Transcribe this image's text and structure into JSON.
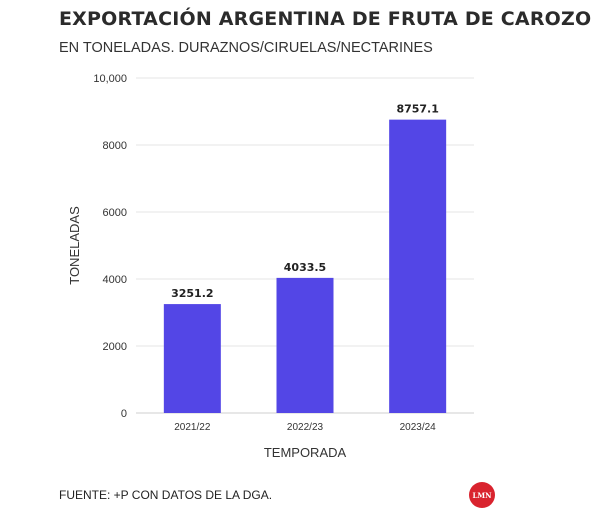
{
  "header": {
    "title": "EXPORTACIÓN ARGENTINA DE FRUTA DE CAROZO",
    "subtitle": "EN TONELADAS. DURAZNOS/CIRUELAS/NECTARINES"
  },
  "footer": {
    "source": "FUENTE: +P CON DATOS DE LA DGA.",
    "logo_text": "LMN",
    "logo_color": "#d9232e"
  },
  "chart_data": {
    "type": "bar",
    "title": "EXPORTACIÓN ARGENTINA DE FRUTA DE CAROZO",
    "subtitle": "EN TONELADAS. DURAZNOS/CIRUELAS/NECTARINES",
    "xlabel": "TEMPORADA",
    "ylabel": "TONELADAS",
    "categories": [
      "2021/22",
      "2022/23",
      "2023/24"
    ],
    "values": [
      3251.2,
      4033.5,
      8757.1
    ],
    "data_labels": [
      "3251.2",
      "4033.5",
      "8757.1"
    ],
    "ylim": [
      0,
      10000
    ],
    "yticks": [
      0,
      2000,
      4000,
      6000,
      8000,
      10000
    ],
    "ytick_labels": [
      "0",
      "2000",
      "4000",
      "6000",
      "8000",
      "10,000"
    ],
    "grid": true,
    "bar_color": "#5346e6"
  }
}
